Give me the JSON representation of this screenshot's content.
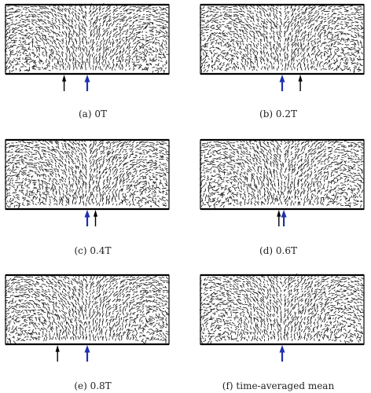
{
  "colors": {
    "field": "#111111",
    "frame": "#000000",
    "marker_black": "#000000",
    "marker_blue": "#1e2fb0"
  },
  "panels": [
    {
      "caption": "(a) 0T",
      "markers": [
        {
          "kind": "black",
          "pos": 0.36
        },
        {
          "kind": "blue",
          "pos": 0.5
        }
      ]
    },
    {
      "caption": "(b) 0.2T",
      "markers": [
        {
          "kind": "blue",
          "pos": 0.5
        },
        {
          "kind": "black",
          "pos": 0.61
        }
      ]
    },
    {
      "caption": "(c) 0.4T",
      "markers": [
        {
          "kind": "blue",
          "pos": 0.5
        },
        {
          "kind": "black",
          "pos": 0.55
        }
      ]
    },
    {
      "caption": "(d) 0.6T",
      "markers": [
        {
          "kind": "black",
          "pos": 0.48
        },
        {
          "kind": "blue",
          "pos": 0.51
        }
      ]
    },
    {
      "caption": "(e) 0.8T",
      "markers": [
        {
          "kind": "black",
          "pos": 0.32
        },
        {
          "kind": "blue",
          "pos": 0.5
        }
      ]
    },
    {
      "caption": "(f) time-averaged mean",
      "markers": [
        {
          "kind": "blue",
          "pos": 0.5
        }
      ]
    }
  ]
}
